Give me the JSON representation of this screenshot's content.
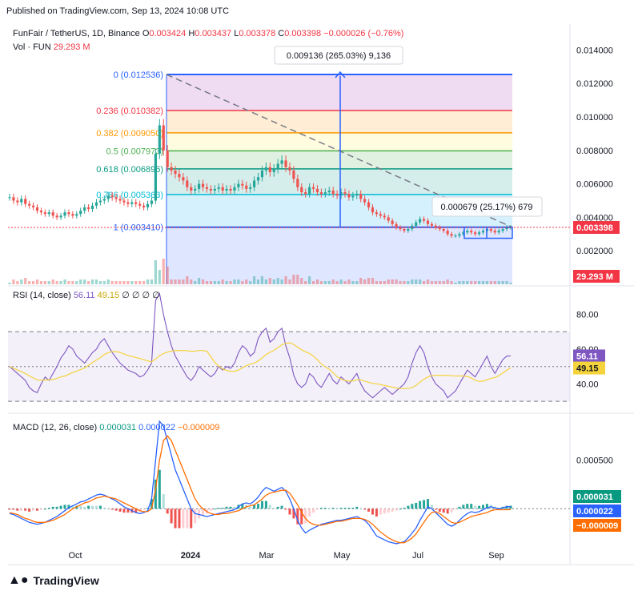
{
  "header": {
    "published": "Published on TradingView.com, Sep 13, 2024 10:08 UTC",
    "symbol": "FunFair / TetherUS, 1D, Binance",
    "open_label": "O",
    "open": "0.003424",
    "high_label": "H",
    "high": "0.003437",
    "low_label": "L",
    "low": "0.003378",
    "close_label": "C",
    "close": "0.003398",
    "change": "−0.000026 (−0.76%)",
    "vol_label": "Vol · FUN",
    "vol": "29.293 M"
  },
  "colors": {
    "up": "#26a69a",
    "down": "#ef5350",
    "blue": "#2962ff",
    "rsi": "#7e57c2",
    "rsi_ma": "#f5d33b",
    "macd": "#2962ff",
    "signal": "#ff6d00",
    "price_tag": "#f23645"
  },
  "chart_data": [
    {
      "type": "candlestick",
      "title": "FunFair / TetherUS, 1D, Binance",
      "x_ticks": [
        "Oct",
        "2024",
        "Mar",
        "May",
        "Jul",
        "Sep"
      ],
      "y_ticks": [
        "0.014000",
        "0.012000",
        "0.010000",
        "0.008000",
        "0.006000",
        "0.004000",
        "0.002000"
      ],
      "ylim": [
        0.0,
        0.0145
      ],
      "last_price": "0.003398",
      "volume_label": "29.293 M",
      "close_series": [
        0.0052,
        0.005,
        0.0049,
        0.0051,
        0.0048,
        0.0047,
        0.0046,
        0.0044,
        0.0043,
        0.0042,
        0.0043,
        0.0041,
        0.004,
        0.0041,
        0.0043,
        0.0042,
        0.0041,
        0.0042,
        0.0044,
        0.0046,
        0.0045,
        0.0047,
        0.0049,
        0.005,
        0.0051,
        0.0053,
        0.0052,
        0.0051,
        0.005,
        0.0049,
        0.0048,
        0.0049,
        0.0048,
        0.0047,
        0.0046,
        0.0048,
        0.005,
        0.0078,
        0.0095,
        0.008,
        0.007,
        0.0068,
        0.0066,
        0.0064,
        0.0062,
        0.0058,
        0.0056,
        0.0057,
        0.006,
        0.0058,
        0.0057,
        0.0056,
        0.0057,
        0.0058,
        0.0056,
        0.0057,
        0.0056,
        0.0058,
        0.006,
        0.0059,
        0.0057,
        0.0058,
        0.0062,
        0.0064,
        0.0068,
        0.007,
        0.0067,
        0.0069,
        0.0072,
        0.0074,
        0.007,
        0.0068,
        0.0063,
        0.0058,
        0.0055,
        0.0054,
        0.0058,
        0.0057,
        0.0055,
        0.0054,
        0.0055,
        0.0056,
        0.0054,
        0.0053,
        0.0055,
        0.0054,
        0.0052,
        0.0053,
        0.0054,
        0.0051,
        0.0049,
        0.0046,
        0.0043,
        0.0042,
        0.0041,
        0.004,
        0.0038,
        0.0036,
        0.0034,
        0.0033,
        0.0032,
        0.0033,
        0.0035,
        0.0037,
        0.0039,
        0.0038,
        0.0036,
        0.0035,
        0.0034,
        0.0033,
        0.0032,
        0.003,
        0.0029,
        0.0029,
        0.003,
        0.0031,
        0.0032,
        0.0031,
        0.003,
        0.0031,
        0.0032,
        0.0033,
        0.0032,
        0.0031,
        0.0032,
        0.0033,
        0.0034,
        0.0034
      ]
    },
    {
      "type": "line",
      "title": "RSI (14, close)",
      "series": [
        {
          "name": "RSI",
          "value_label": "56.11"
        },
        {
          "name": "RSI MA",
          "value_label": "49.15"
        }
      ],
      "y_ticks": [
        "80.00",
        "60.00",
        "40.00"
      ],
      "ylim": [
        25,
        95
      ],
      "bands": [
        70,
        50,
        30
      ],
      "rsi_series": [
        50,
        48,
        46,
        44,
        42,
        38,
        36,
        35,
        40,
        44,
        42,
        46,
        50,
        55,
        58,
        62,
        60,
        56,
        54,
        52,
        55,
        58,
        60,
        64,
        66,
        62,
        58,
        55,
        52,
        50,
        48,
        47,
        46,
        44,
        45,
        48,
        52,
        88,
        92,
        80,
        70,
        62,
        56,
        52,
        48,
        44,
        42,
        45,
        50,
        48,
        46,
        44,
        46,
        50,
        48,
        50,
        49,
        52,
        58,
        62,
        60,
        56,
        58,
        66,
        70,
        72,
        64,
        66,
        70,
        72,
        62,
        55,
        45,
        40,
        38,
        40,
        46,
        44,
        40,
        38,
        42,
        46,
        42,
        40,
        44,
        42,
        40,
        43,
        46,
        40,
        36,
        34,
        32,
        34,
        36,
        38,
        36,
        34,
        36,
        38,
        40,
        44,
        52,
        58,
        62,
        58,
        50,
        44,
        40,
        38,
        36,
        32,
        34,
        36,
        40,
        44,
        48,
        46,
        44,
        48,
        52,
        56,
        50,
        46,
        50,
        54,
        56,
        56.11
      ]
    },
    {
      "type": "line",
      "title": "MACD (12, 26, close)",
      "series": [
        {
          "name": "Histogram",
          "value_label": "0.000031"
        },
        {
          "name": "MACD",
          "value_label": "0.000022"
        },
        {
          "name": "Signal",
          "value_label": "−0.000009"
        }
      ],
      "y_ticks": [
        "0.000500"
      ],
      "ylim": [
        -0.00055,
        0.00095
      ],
      "macd_series": [
        -5e-05,
        -6e-05,
        -8e-05,
        -0.0001,
        -0.00012,
        -0.00014,
        -0.00015,
        -0.00016,
        -0.00015,
        -0.00014,
        -0.00012,
        -0.0001,
        -8e-05,
        -5e-05,
        -2e-05,
        1e-05,
        3e-05,
        5e-05,
        7e-05,
        8e-05,
        0.0001,
        0.00012,
        0.00014,
        0.00015,
        0.00014,
        0.00012,
        0.0001,
        8e-05,
        5e-05,
        2e-05,
        0.0,
        -2e-05,
        -4e-05,
        -5e-05,
        -4e-05,
        -2e-05,
        0.0001,
        0.0005,
        0.0009,
        0.00085,
        0.0007,
        0.00055,
        0.0004,
        0.0003,
        0.0002,
        0.0001,
        0.0,
        -5e-05,
        -6e-05,
        -7e-05,
        -8e-05,
        -7e-05,
        -6e-05,
        -5e-05,
        -4e-05,
        -3e-05,
        -2e-05,
        -1e-05,
        2e-05,
        5e-05,
        6e-05,
        5e-05,
        8e-05,
        0.00012,
        0.00018,
        0.00022,
        0.0002,
        0.00018,
        0.0002,
        0.00022,
        0.00018,
        0.0001,
        0.0,
        -0.00012,
        -0.0002,
        -0.00025,
        -0.00022,
        -0.0002,
        -0.00018,
        -0.00016,
        -0.00015,
        -0.00014,
        -0.00013,
        -0.00012,
        -0.00012,
        -0.00011,
        -0.0001,
        -9e-05,
        -8e-05,
        -0.0001,
        -0.00012,
        -0.00016,
        -0.00022,
        -0.00028,
        -0.0003,
        -0.00032,
        -0.00034,
        -0.00035,
        -0.00036,
        -0.00035,
        -0.00034,
        -0.0003,
        -0.00025,
        -0.0002,
        -0.00012,
        -5e-05,
        2e-05,
        0.0,
        -4e-05,
        -8e-05,
        -0.00012,
        -0.00016,
        -0.00018,
        -0.00016,
        -0.00012,
        -8e-05,
        -5e-05,
        -3e-05,
        -4e-05,
        -3e-05,
        -1e-05,
        1e-05,
        2e-05,
        1e-05,
        0.0,
        1e-05,
        2e-05,
        2.2e-05
      ],
      "signal_series": [
        -4e-05,
        -5e-05,
        -6e-05,
        -8e-05,
        -0.0001,
        -0.00011,
        -0.00013,
        -0.00014,
        -0.00014,
        -0.00014,
        -0.00013,
        -0.00012,
        -0.0001,
        -8e-05,
        -6e-05,
        -3e-05,
        0.0,
        2e-05,
        4e-05,
        6e-05,
        7e-05,
        9e-05,
        0.00011,
        0.00012,
        0.00013,
        0.00012,
        0.00011,
        0.0001,
        8e-05,
        6e-05,
        4e-05,
        2e-05,
        0.0,
        -2e-05,
        -3e-05,
        -3e-05,
        0.0,
        0.0002,
        0.0005,
        0.0007,
        0.00075,
        0.0007,
        0.0006,
        0.0005,
        0.0004,
        0.0003,
        0.0002,
        0.0001,
        4e-05,
        0.0,
        -3e-05,
        -5e-05,
        -6e-05,
        -6e-05,
        -5e-05,
        -5e-05,
        -4e-05,
        -3e-05,
        -2e-05,
        0.0,
        2e-05,
        3e-05,
        4e-05,
        7e-05,
        0.0001,
        0.00014,
        0.00016,
        0.00017,
        0.00018,
        0.00019,
        0.00019,
        0.00016,
        0.0001,
        4e-05,
        -4e-05,
        -0.0001,
        -0.00014,
        -0.00016,
        -0.00017,
        -0.00017,
        -0.00016,
        -0.00015,
        -0.00014,
        -0.00013,
        -0.00013,
        -0.00012,
        -0.00011,
        -0.0001,
        -0.0001,
        -0.0001,
        -0.00011,
        -0.00013,
        -0.00016,
        -0.0002,
        -0.00024,
        -0.00027,
        -0.0003,
        -0.00032,
        -0.00034,
        -0.00035,
        -0.00035,
        -0.00033,
        -0.0003,
        -0.00026,
        -0.0002,
        -0.00014,
        -8e-05,
        -4e-05,
        -3e-05,
        -5e-05,
        -8e-05,
        -0.00011,
        -0.00014,
        -0.00015,
        -0.00014,
        -0.00012,
        -0.0001,
        -8e-05,
        -7e-05,
        -6e-05,
        -5e-05,
        -4e-05,
        -2e-05,
        -1e-05,
        -1e-05,
        -1e-05,
        -1e-05,
        -9e-06
      ]
    }
  ],
  "fib": {
    "levels": [
      {
        "label": "0 (0.012536)",
        "price": 0.012536,
        "color": "#2962ff"
      },
      {
        "label": "0.236 (0.010382)",
        "price": 0.010382,
        "color": "#f23645"
      },
      {
        "label": "0.382 (0.009050)",
        "price": 0.00905,
        "color": "#ff9800"
      },
      {
        "label": "0.5 (0.007973)",
        "price": 0.007973,
        "color": "#4caf50"
      },
      {
        "label": "0.618 (0.006896)",
        "price": 0.006896,
        "color": "#089981"
      },
      {
        "label": "0.786 (0.005363)",
        "price": 0.005363,
        "color": "#00bcd4"
      },
      {
        "label": "1 (0.003410)",
        "price": 0.00341,
        "color": "#2962ff"
      }
    ]
  },
  "annotations": {
    "measure_big": "0.009136 (265.03%) 9,136",
    "measure_small": "0.000679 (25.17%) 679"
  },
  "rsi_header": {
    "title": "RSI (14, close)",
    "value": "56.11",
    "ma": "49.15",
    "extra": "∅ ∅ ∅ ∅"
  },
  "macd_header": {
    "title": "MACD (12, 26, close)",
    "hist": "0.000031",
    "macd": "0.000022",
    "signal": "−0.000009"
  },
  "footer": {
    "brand": "TradingView"
  }
}
